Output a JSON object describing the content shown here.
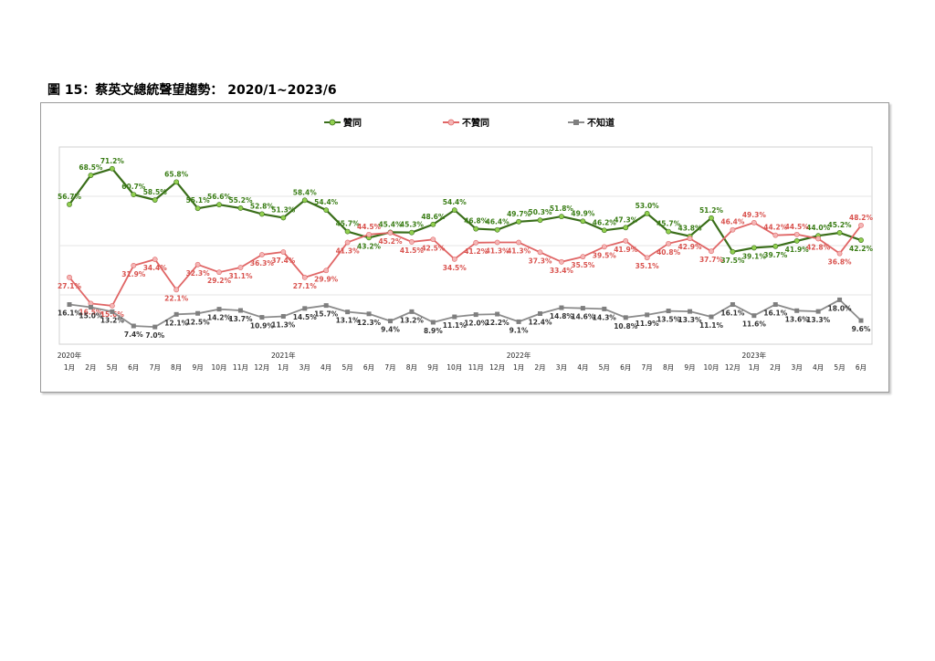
{
  "title": "圖 15：蔡英文總統聲望趨勢：  2020/1~2023/6",
  "chart_data": {
    "type": "line",
    "categories": [
      "1月",
      "2月",
      "5月",
      "6月",
      "7月",
      "8月",
      "9月",
      "10月",
      "11月",
      "12月",
      "1月",
      "3月",
      "4月",
      "5月",
      "6月",
      "7月",
      "8月",
      "9月",
      "10月",
      "11月",
      "12月",
      "1月",
      "2月",
      "3月",
      "4月",
      "5月",
      "6月",
      "7月",
      "8月",
      "9月",
      "10月",
      "12月",
      "1月",
      "2月",
      "3月",
      "4月",
      "5月",
      "6月"
    ],
    "year_labels": [
      {
        "index": 0,
        "label": "2020年"
      },
      {
        "index": 10,
        "label": "2021年"
      },
      {
        "index": 21,
        "label": "2022年"
      },
      {
        "index": 32,
        "label": "2023年"
      }
    ],
    "ylim": [
      0,
      80
    ],
    "grid": true,
    "legend_position": "top",
    "series": [
      {
        "name": "贊同",
        "color": "#3a6e1a",
        "marker_color": "#92d050",
        "values": [
          56.7,
          68.5,
          71.2,
          60.7,
          58.5,
          65.8,
          55.1,
          56.6,
          55.2,
          52.8,
          51.3,
          58.4,
          54.4,
          45.7,
          43.2,
          45.4,
          45.3,
          48.6,
          54.4,
          46.8,
          46.4,
          49.7,
          50.3,
          51.8,
          49.9,
          46.2,
          47.3,
          53.0,
          45.7,
          43.8,
          51.2,
          37.5,
          39.1,
          39.7,
          41.9,
          44.0,
          45.2,
          42.2
        ]
      },
      {
        "name": "不贊同",
        "color": "#e06666",
        "marker_color": "#f4b6b6",
        "values": [
          27.1,
          16.5,
          15.6,
          31.9,
          34.4,
          22.1,
          32.3,
          29.2,
          31.1,
          36.3,
          37.4,
          27.1,
          29.9,
          41.3,
          44.5,
          45.2,
          41.5,
          42.5,
          34.5,
          41.2,
          41.3,
          41.3,
          37.3,
          33.4,
          35.5,
          39.5,
          41.9,
          35.1,
          40.8,
          42.9,
          37.7,
          46.4,
          49.3,
          44.2,
          44.5,
          42.8,
          36.8,
          48.2
        ]
      },
      {
        "name": "不知道",
        "color": "#8c8c8c",
        "marker_color": "#7f7f7f",
        "values": [
          16.1,
          15.0,
          13.2,
          7.4,
          7.0,
          12.1,
          12.5,
          14.2,
          13.7,
          10.9,
          11.3,
          14.5,
          15.7,
          13.1,
          12.3,
          9.4,
          13.2,
          8.9,
          11.1,
          12.0,
          12.2,
          9.1,
          12.4,
          14.8,
          14.6,
          14.3,
          10.8,
          11.9,
          13.5,
          13.3,
          11.1,
          16.1,
          11.6,
          16.1,
          13.6,
          13.3,
          18.0,
          9.6
        ]
      }
    ]
  }
}
